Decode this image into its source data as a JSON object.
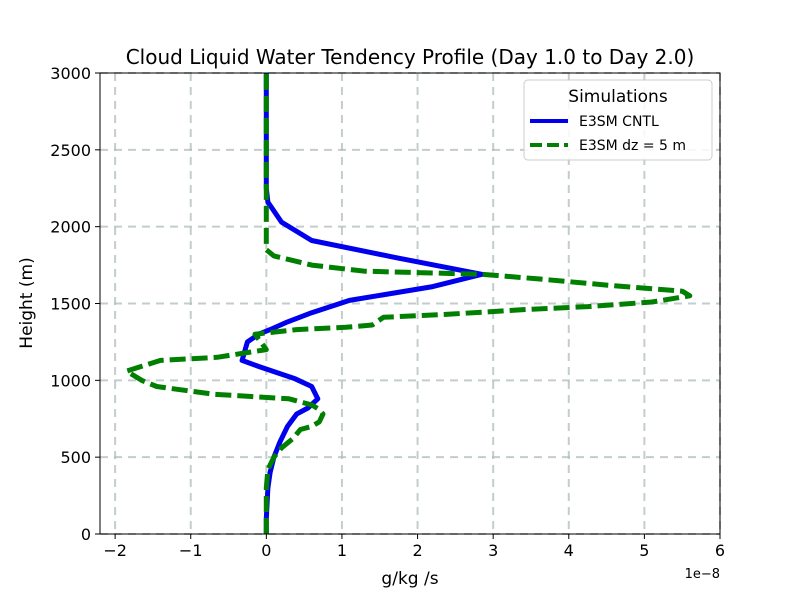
{
  "chart_data": {
    "type": "line",
    "title": "Cloud Liquid Water Tendency Profile (Day 1.0 to Day 2.0)",
    "xlabel": "g/kg /s",
    "ylabel": "Height (m)",
    "x_offset_label": "1e−8",
    "xlim": [
      -2.2,
      6
    ],
    "ylim": [
      0,
      3000
    ],
    "x_ticks": [
      -2,
      -1,
      0,
      1,
      2,
      3,
      4,
      5,
      6
    ],
    "x_tick_labels": [
      "−2",
      "−1",
      "0",
      "1",
      "2",
      "3",
      "4",
      "5",
      "6"
    ],
    "y_ticks": [
      0,
      500,
      1000,
      1500,
      2000,
      2500,
      3000
    ],
    "y_tick_labels": [
      "0",
      "500",
      "1000",
      "1500",
      "2000",
      "2500",
      "3000"
    ],
    "grid": true,
    "legend": {
      "title": "Simulations",
      "placement": "top-right"
    },
    "series": [
      {
        "name": "E3SM CNTL",
        "color": "#0000ee",
        "style": "solid",
        "x": [
          0,
          0,
          0.01,
          0.02,
          0.05,
          0.1,
          0.18,
          0.28,
          0.4,
          0.55,
          0.68,
          0.6,
          0.38,
          -0.1,
          -0.32,
          -0.25,
          -0.1,
          0.05,
          0.28,
          0.6,
          1.1,
          2.2,
          2.85,
          1.7,
          0.6,
          0.2,
          0.02,
          0,
          0,
          0,
          0
        ],
        "y": [
          0,
          100,
          200,
          300,
          400,
          500,
          600,
          700,
          780,
          820,
          880,
          960,
          1010,
          1090,
          1130,
          1250,
          1300,
          1330,
          1380,
          1440,
          1520,
          1610,
          1690,
          1800,
          1910,
          2030,
          2160,
          2250,
          2500,
          2800,
          3000
        ]
      },
      {
        "name": "E3SM dz = 5 m",
        "color": "#007f00",
        "style": "dashed",
        "x": [
          0,
          0,
          0,
          0.02,
          0.1,
          0.2,
          0.35,
          0.45,
          0.6,
          0.7,
          0.75,
          0.7,
          0.6,
          0.3,
          -0.7,
          -1.45,
          -1.65,
          -1.85,
          -1.4,
          -0.65,
          0.0,
          -0.15,
          0.4,
          1.05,
          1.4,
          1.55,
          2.4,
          3.4,
          4.25,
          5.1,
          5.6,
          5.5,
          4.5,
          3.6,
          2.85,
          1.3,
          0.6,
          0.1,
          0,
          0,
          0,
          0
        ],
        "y": [
          0,
          100,
          300,
          420,
          500,
          560,
          620,
          680,
          700,
          730,
          780,
          810,
          840,
          880,
          910,
          960,
          1000,
          1060,
          1130,
          1150,
          1200,
          1300,
          1330,
          1345,
          1360,
          1410,
          1430,
          1460,
          1480,
          1510,
          1550,
          1580,
          1620,
          1660,
          1690,
          1710,
          1750,
          1810,
          1850,
          2200,
          2600,
          3000
        ]
      }
    ]
  }
}
